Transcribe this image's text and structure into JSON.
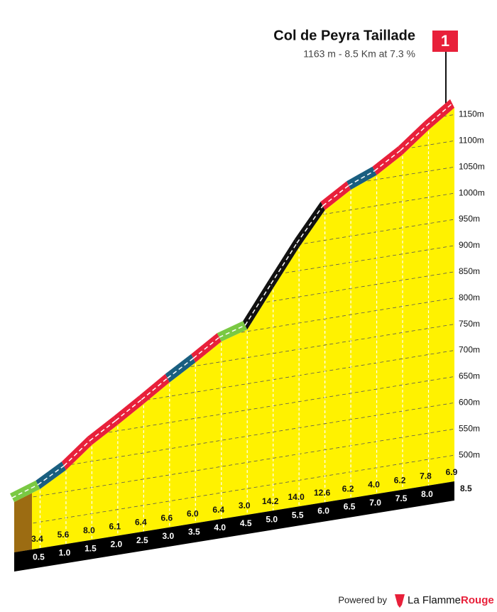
{
  "chart_data": {
    "type": "climb-profile",
    "title": "Col de Peyra Taillade",
    "subtitle": "1163 m - 8.5 Km at 7.3 %",
    "badge": "1",
    "start_elevation": 546,
    "xlim": [
      0,
      8.5
    ],
    "xticks": [
      0.5,
      {
        "value": 1,
        "label": "1.0"
      },
      1.5,
      {
        "value": 2,
        "label": "2.0"
      },
      2.5,
      {
        "value": 3,
        "label": "3.0"
      },
      3.5,
      {
        "value": 4,
        "label": "4.0"
      },
      4.5,
      {
        "value": 5,
        "label": "5.0"
      },
      5.5,
      {
        "value": 6,
        "label": "6.0"
      },
      6.5,
      {
        "value": 7,
        "label": "7.0"
      },
      7.5,
      {
        "value": 8,
        "label": "8.0"
      },
      8.5
    ],
    "ylim": [
      450,
      1200
    ],
    "yticks": [
      {
        "value": 500,
        "label": "500m"
      },
      {
        "value": 550,
        "label": "550m"
      },
      {
        "value": 600,
        "label": "600m"
      },
      {
        "value": 650,
        "label": "650m"
      },
      {
        "value": 700,
        "label": "700m"
      },
      {
        "value": 750,
        "label": "750m"
      },
      {
        "value": 800,
        "label": "800m"
      },
      {
        "value": 850,
        "label": "850m"
      },
      {
        "value": 900,
        "label": "900m"
      },
      {
        "value": 950,
        "label": "950m"
      },
      {
        "value": 1000,
        "label": "1000m"
      },
      {
        "value": 1050,
        "label": "1050m"
      },
      {
        "value": 1100,
        "label": "1100m"
      },
      {
        "value": 1150,
        "label": "1150m"
      }
    ],
    "gradients": {
      "values": [
        3.4,
        5.6,
        8.0,
        6.1,
        6.4,
        6.6,
        6.0,
        6.4,
        3.0,
        14.2,
        14.0,
        12.6,
        6.2,
        4.0,
        6.2,
        7.8,
        6.9
      ],
      "value_labels": [
        "3.4",
        "5.6",
        "8.0",
        "6.1",
        "6.4",
        "6.6",
        "6.0",
        "6.4",
        "3.0",
        "14.2",
        "14.0",
        "12.6",
        "6.2",
        "4.0",
        "6.2",
        "7.8",
        "6.9"
      ],
      "colors": [
        "#7ac943",
        "#1a5f80",
        "#e8203a",
        "#e8203a",
        "#e8203a",
        "#e8203a",
        "#1a5f80",
        "#e8203a",
        "#7ac943",
        "#111111",
        "#111111",
        "#111111",
        "#e8203a",
        "#1a5f80",
        "#e8203a",
        "#e8203a",
        "#e8203a"
      ]
    },
    "fill_color": "#fff200",
    "grid": true
  },
  "footer": {
    "powered_by": "Powered by",
    "brand": "La Flamme",
    "brand_accent": "Rouge"
  }
}
